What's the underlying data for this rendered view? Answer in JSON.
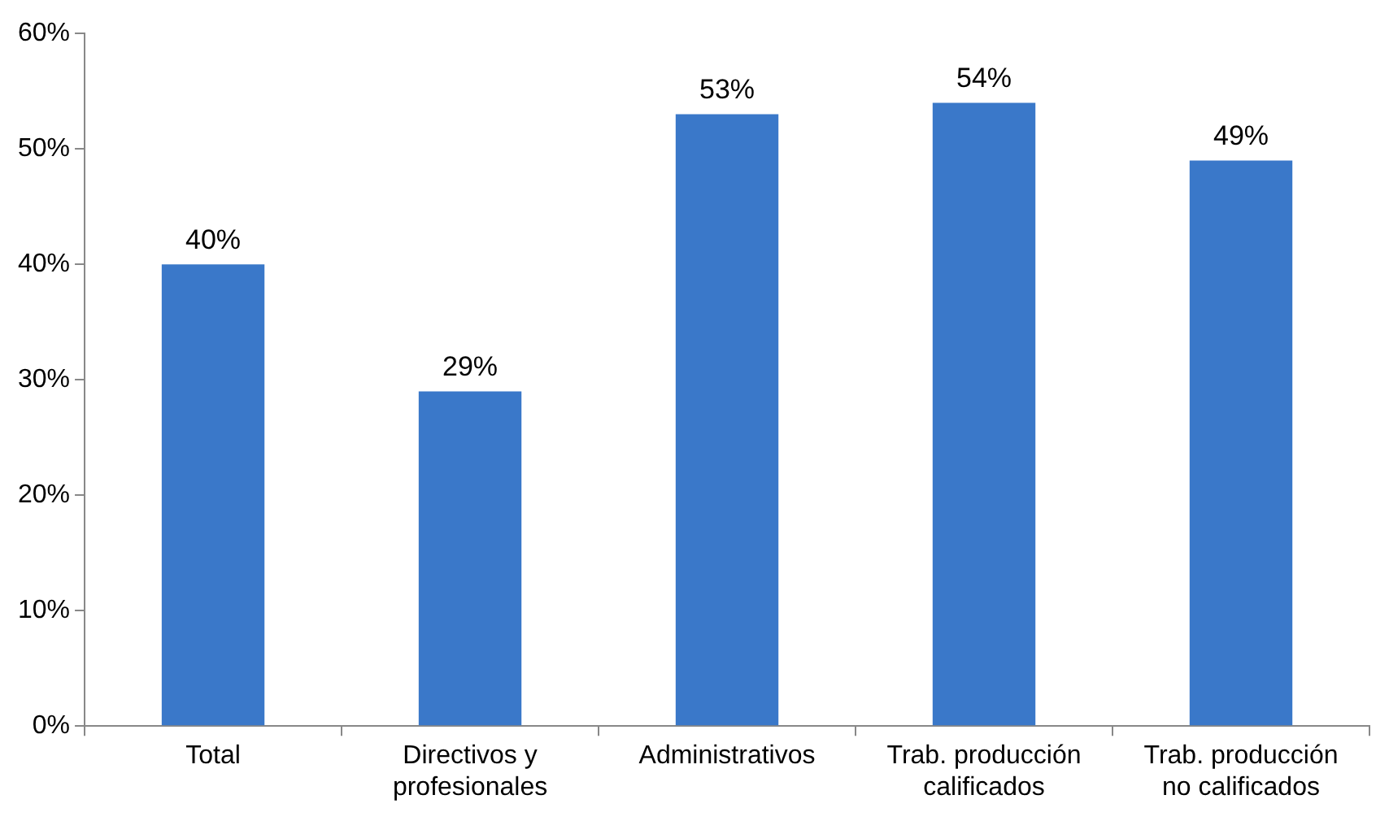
{
  "chart_data": {
    "type": "bar",
    "categories": [
      "Total",
      "Directivos y profesionales",
      "Administrativos",
      "Trab. producción calificados",
      "Trab. producción no calificados"
    ],
    "values": [
      40,
      29,
      53,
      54,
      49
    ],
    "value_labels": [
      "40%",
      "29%",
      "53%",
      "54%",
      "49%"
    ],
    "color": "#3a78c9",
    "grid": false,
    "legend": false,
    "ylim": [
      0,
      60
    ],
    "yticks": [
      {
        "value": 0,
        "label": "0%"
      },
      {
        "value": 10,
        "label": "10%"
      },
      {
        "value": 20,
        "label": "20%"
      },
      {
        "value": 30,
        "label": "30%"
      },
      {
        "value": 40,
        "label": "40%"
      },
      {
        "value": 50,
        "label": "50%"
      },
      {
        "value": 60,
        "label": "60%"
      }
    ]
  }
}
